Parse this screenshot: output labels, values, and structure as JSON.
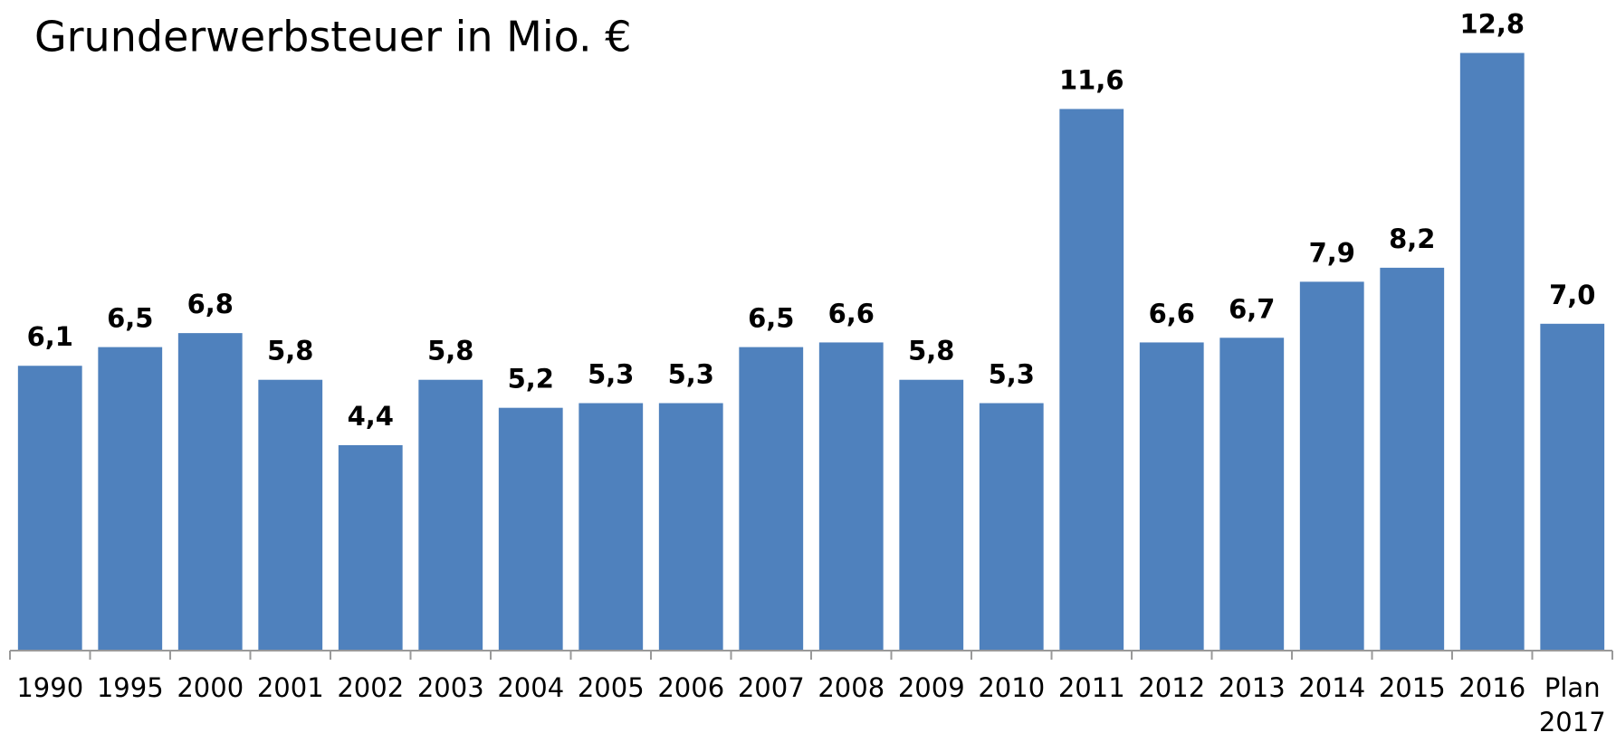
{
  "chart_data": {
    "type": "bar",
    "title": "Grunderwerbsteuer in Mio. €",
    "categories": [
      "1990",
      "1995",
      "2000",
      "2001",
      "2002",
      "2003",
      "2004",
      "2005",
      "2006",
      "2007",
      "2008",
      "2009",
      "2010",
      "2011",
      "2012",
      "2013",
      "2014",
      "2015",
      "2016",
      "Plan 2017"
    ],
    "values": [
      6.1,
      6.5,
      6.8,
      5.8,
      4.4,
      5.8,
      5.2,
      5.3,
      5.3,
      6.5,
      6.6,
      5.8,
      5.3,
      11.6,
      6.6,
      6.7,
      7.9,
      8.2,
      12.8,
      7.0
    ],
    "value_labels": [
      "6,1",
      "6,5",
      "6,8",
      "5,8",
      "4,4",
      "5,8",
      "5,2",
      "5,3",
      "5,3",
      "6,5",
      "6,6",
      "5,8",
      "5,3",
      "11,6",
      "6,6",
      "6,7",
      "7,9",
      "8,2",
      "12,8",
      "7,0"
    ],
    "color": "#4f81bd"
  }
}
